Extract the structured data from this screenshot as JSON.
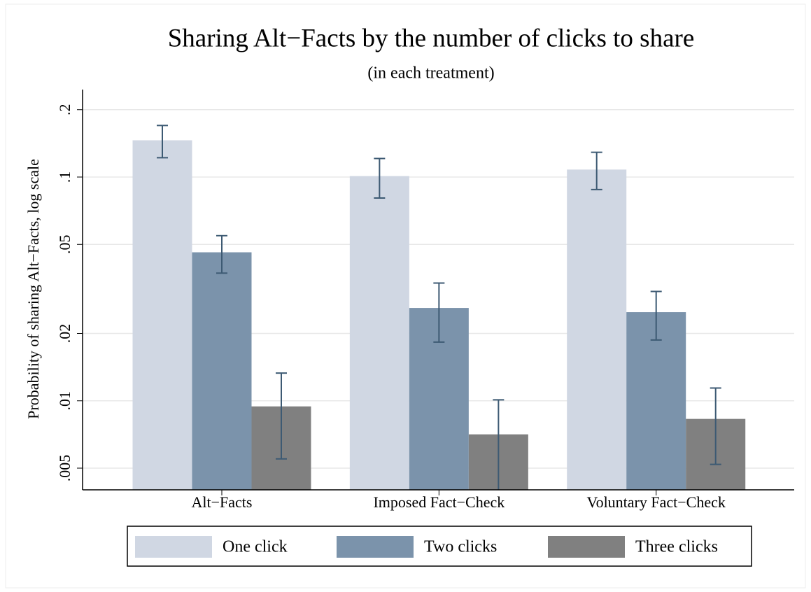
{
  "chart_data": {
    "type": "bar",
    "title": "Sharing Alt−Facts by the number of clicks to share",
    "subtitle": "(in each treatment)",
    "y_label": "Probability of sharing Alt−Facts, log scale",
    "log_scale": true,
    "grid": true,
    "legend_position": "bottom",
    "categories": [
      "Alt−Facts",
      "Imposed Fact−Check",
      "Voluntary Fact−Check"
    ],
    "series": [
      {
        "name": "One click",
        "color": "#d0d7e3",
        "values": [
          0.146,
          0.101,
          0.108
        ],
        "lower": [
          0.122,
          0.0806,
          0.0879
        ],
        "upper": [
          0.17,
          0.121,
          0.129
        ]
      },
      {
        "name": "Two clicks",
        "color": "#7b93ab",
        "values": [
          0.0461,
          0.026,
          0.0249
        ],
        "lower": [
          0.0372,
          0.0183,
          0.0187
        ],
        "upper": [
          0.0547,
          0.0336,
          0.0308
        ]
      },
      {
        "name": "Three clicks",
        "color": "#808080",
        "values": [
          0.00944,
          0.00708,
          0.0083
        ],
        "lower": [
          0.0055,
          0.004,
          0.0052
        ],
        "upper": [
          0.0133,
          0.0101,
          0.0114
        ]
      }
    ],
    "error_color": "#3d5a73",
    "ylim": [
      0.004,
      0.246
    ],
    "yticks": [
      {
        "value": 0.005,
        "label": ".005"
      },
      {
        "value": 0.01,
        "label": ".01"
      },
      {
        "value": 0.02,
        "label": ".02"
      },
      {
        "value": 0.05,
        "label": ".05"
      },
      {
        "value": 0.1,
        "label": ".1"
      },
      {
        "value": 0.2,
        "label": ".2"
      }
    ]
  }
}
